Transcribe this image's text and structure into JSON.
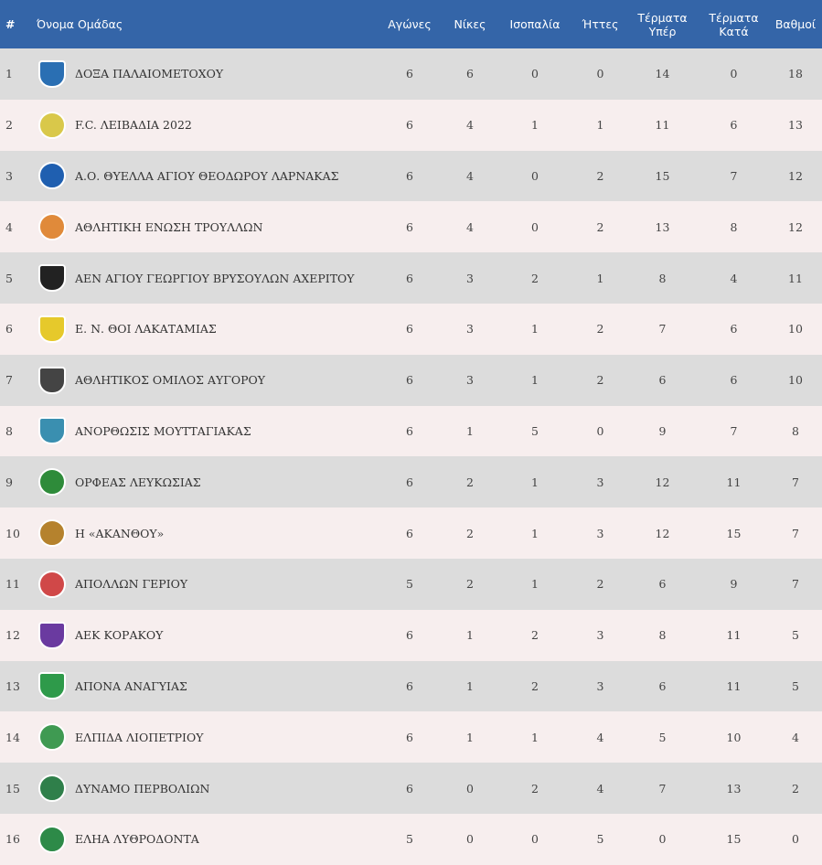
{
  "header": {
    "rank": "#",
    "team": "Όνομα Ομάδας",
    "played": "Αγώνες",
    "wins": "Νίκες",
    "draws": "Ισοπαλία",
    "losses": "Ήττες",
    "goals_for_1": "Τέρματα",
    "goals_for_2": "Υπέρ",
    "goals_against_1": "Τέρματα",
    "goals_against_2": "Κατά",
    "points": "Βαθμοί"
  },
  "colors": {
    "header_bg": "#3465a8",
    "row_odd": "#dcdcdc",
    "row_even": "#f7eeee"
  },
  "rows": [
    {
      "rank": "1",
      "team": "ΔΟΞΑ ΠΑΛΑΙΟΜΕΤΟΧΟΥ",
      "p": "6",
      "w": "6",
      "d": "0",
      "l": "0",
      "gf": "14",
      "ga": "0",
      "pts": "18",
      "logo_color": "#2a6fb3",
      "logo_shape": "shield",
      "logo_icon": "doxa-crest-icon"
    },
    {
      "rank": "2",
      "team": "F.C. ΛΕΙΒΑΔΙΑ 2022",
      "p": "6",
      "w": "4",
      "d": "1",
      "l": "1",
      "gf": "11",
      "ga": "6",
      "pts": "13",
      "logo_color": "#d9c84a",
      "logo_shape": "circle",
      "logo_icon": "livadia-crest-icon"
    },
    {
      "rank": "3",
      "team": "Α.Ο. ΘΥΕΛΛΑ ΑΓΙΟΥ ΘΕΟΔΩΡΟΥ ΛΑΡΝΑΚΑΣ",
      "p": "6",
      "w": "4",
      "d": "0",
      "l": "2",
      "gf": "15",
      "ga": "7",
      "pts": "12",
      "logo_color": "#1f5fb0",
      "logo_shape": "circle",
      "logo_icon": "thyella-crest-icon"
    },
    {
      "rank": "4",
      "team": "ΑΘΛΗΤΙΚΗ ΕΝΩΣΗ ΤΡΟΥΛΛΩΝ",
      "p": "6",
      "w": "4",
      "d": "0",
      "l": "2",
      "gf": "13",
      "ga": "8",
      "pts": "12",
      "logo_color": "#e08a3a",
      "logo_shape": "circle",
      "logo_icon": "troulloi-crest-icon"
    },
    {
      "rank": "5",
      "team": "ΑΕΝ ΑΓΙΟΥ ΓΕΩΡΓΙΟΥ ΒΡΥΣΟΥΛΩΝ ΑΧΕΡΙΤΟΥ",
      "p": "6",
      "w": "3",
      "d": "2",
      "l": "1",
      "gf": "8",
      "ga": "4",
      "pts": "11",
      "logo_color": "#222222",
      "logo_shape": "shield",
      "logo_icon": "aen-crest-icon"
    },
    {
      "rank": "6",
      "team": "Ε. Ν. ΘΟΙ ΛΑΚΑΤΑΜΙΑΣ",
      "p": "6",
      "w": "3",
      "d": "1",
      "l": "2",
      "gf": "7",
      "ga": "6",
      "pts": "10",
      "logo_color": "#e6c92b",
      "logo_shape": "shield",
      "logo_icon": "thoi-crest-icon"
    },
    {
      "rank": "7",
      "team": "ΑΘΛΗΤΙΚΟΣ ΟΜΙΛΟΣ ΑΥΓΟΡΟΥ",
      "p": "6",
      "w": "3",
      "d": "1",
      "l": "2",
      "gf": "6",
      "ga": "6",
      "pts": "10",
      "logo_color": "#444444",
      "logo_shape": "shield",
      "logo_icon": "avgorou-crest-icon"
    },
    {
      "rank": "8",
      "team": "ΑΝΟΡΘΩΣΙΣ ΜΟΥΤΤΑΓΙΑΚΑΣ",
      "p": "6",
      "w": "1",
      "d": "5",
      "l": "0",
      "gf": "9",
      "ga": "7",
      "pts": "8",
      "logo_color": "#3a8fb0",
      "logo_shape": "shield",
      "logo_icon": "anorthosis-crest-icon"
    },
    {
      "rank": "9",
      "team": "ΟΡΦΕΑΣ ΛΕΥΚΩΣΙΑΣ",
      "p": "6",
      "w": "2",
      "d": "1",
      "l": "3",
      "gf": "12",
      "ga": "11",
      "pts": "7",
      "logo_color": "#2e8b3a",
      "logo_shape": "circle",
      "logo_icon": "orfeas-crest-icon"
    },
    {
      "rank": "10",
      "team": "Η «ΑΚΑΝΘΟΥ»",
      "p": "6",
      "w": "2",
      "d": "1",
      "l": "3",
      "gf": "12",
      "ga": "15",
      "pts": "7",
      "logo_color": "#b5822d",
      "logo_shape": "circle",
      "logo_icon": "akanthou-crest-icon"
    },
    {
      "rank": "11",
      "team": "ΑΠΟΛΛΩΝ ΓΕΡΙΟΥ",
      "p": "5",
      "w": "2",
      "d": "1",
      "l": "2",
      "gf": "6",
      "ga": "9",
      "pts": "7",
      "logo_color": "#d04848",
      "logo_shape": "circle",
      "logo_icon": "apollon-crest-icon"
    },
    {
      "rank": "12",
      "team": "ΑΕΚ ΚΟΡΑΚΟΥ",
      "p": "6",
      "w": "1",
      "d": "2",
      "l": "3",
      "gf": "8",
      "ga": "11",
      "pts": "5",
      "logo_color": "#6a3aa0",
      "logo_shape": "shield",
      "logo_icon": "aek-crest-icon"
    },
    {
      "rank": "13",
      "team": "ΑΠΟΝΑ ΑΝΑΓΥΙΑΣ",
      "p": "6",
      "w": "1",
      "d": "2",
      "l": "3",
      "gf": "6",
      "ga": "11",
      "pts": "5",
      "logo_color": "#2e9a4a",
      "logo_shape": "shield",
      "logo_icon": "apona-crest-icon"
    },
    {
      "rank": "14",
      "team": "ΕΛΠΙΔΑ ΛΙΟΠΕΤΡΙΟΥ",
      "p": "6",
      "w": "1",
      "d": "1",
      "l": "4",
      "gf": "5",
      "ga": "10",
      "pts": "4",
      "logo_color": "#3f9a52",
      "logo_shape": "circle",
      "logo_icon": "elpida-crest-icon"
    },
    {
      "rank": "15",
      "team": "ΔΥΝΑΜΟ ΠΕΡΒΟΛΙΩΝ",
      "p": "6",
      "w": "0",
      "d": "2",
      "l": "4",
      "gf": "7",
      "ga": "13",
      "pts": "2",
      "logo_color": "#2f7f4a",
      "logo_shape": "circle",
      "logo_icon": "dynamo-crest-icon"
    },
    {
      "rank": "16",
      "team": "ΕΛΗΑ ΛΥΘΡΟΔΟΝΤΑ",
      "p": "5",
      "w": "0",
      "d": "0",
      "l": "5",
      "gf": "0",
      "ga": "15",
      "pts": "0",
      "logo_color": "#2d8a48",
      "logo_shape": "circle",
      "logo_icon": "elia-crest-icon"
    }
  ]
}
